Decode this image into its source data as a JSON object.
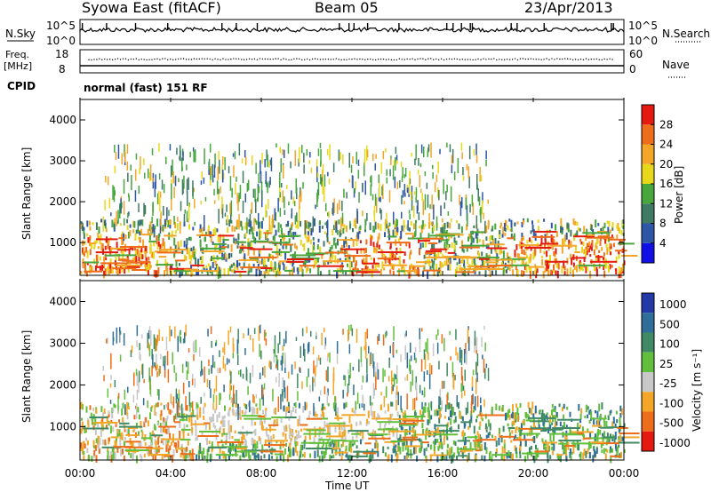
{
  "header": {
    "station": "Syowa East (fitACF)",
    "beam": "Beam 05",
    "date": "23/Apr/2013"
  },
  "top_panels": {
    "nsky_label": "N.Sky",
    "nsky_hi": "10^5",
    "nsky_lo": "10^0",
    "nsky_hi_right": "10^5",
    "nsky_lo_right": "10^0",
    "nsearch_label": "N.Search",
    "freq_label": "Freq.",
    "freq_unit": "[MHz]",
    "freq_hi": "18",
    "freq_lo": "8",
    "nave_hi": "60",
    "nave_lo": "0",
    "nave_label": "Nave",
    "cpid_label": "CPID",
    "cpid_text": "normal (fast) 151 RF"
  },
  "axes": {
    "ylabel": "Slant Range [km]",
    "yticks": [
      "1000",
      "2000",
      "3000",
      "4000"
    ],
    "xticks": [
      "00:00",
      "04:00",
      "08:00",
      "12:00",
      "16:00",
      "20:00",
      "00:00"
    ],
    "xlabel": "Time UT"
  },
  "power_colorbar": {
    "label": "Power [dB]",
    "ticks": [
      "4",
      "8",
      "12",
      "16",
      "20",
      "24",
      "28"
    ],
    "colors": [
      "#1010e6",
      "#2f57a8",
      "#3f7a64",
      "#47a63c",
      "#e8d81a",
      "#f4a628",
      "#ee6d1a",
      "#e41a10"
    ]
  },
  "velocity_colorbar": {
    "label": "Velocity [m s⁻¹]",
    "ticks": [
      "1000",
      "500",
      "100",
      "25",
      "-25",
      "-100",
      "-500",
      "-1000"
    ],
    "colors": [
      "#2439a8",
      "#2f6e98",
      "#3f8a64",
      "#62bf3c",
      "#c8c8c8",
      "#f4a628",
      "#ee6d1a",
      "#e41a10"
    ]
  },
  "chart_data": [
    {
      "type": "heatmap",
      "title": "Power",
      "xlabel": "Time UT",
      "ylabel": "Slant Range [km]",
      "xlim": [
        "00:00",
        "24:00"
      ],
      "ylim": [
        200,
        4500
      ],
      "colorbar_range": [
        0,
        30
      ],
      "colorbar_label": "Power [dB]",
      "description_bands": [
        {
          "range_km": [
            300,
            1500
          ],
          "time": "00:00-24:00",
          "typical_db": [
            8,
            28
          ]
        },
        {
          "range_km": [
            1500,
            3400
          ],
          "time": "03:00-16:00",
          "typical_db": [
            4,
            16
          ]
        }
      ]
    },
    {
      "type": "heatmap",
      "title": "Velocity",
      "xlabel": "Time UT",
      "ylabel": "Slant Range [km]",
      "xlim": [
        "00:00",
        "24:00"
      ],
      "ylim": [
        200,
        4500
      ],
      "colorbar_range": [
        -1000,
        1000
      ],
      "colorbar_label": "Velocity [m s-1]"
    }
  ]
}
